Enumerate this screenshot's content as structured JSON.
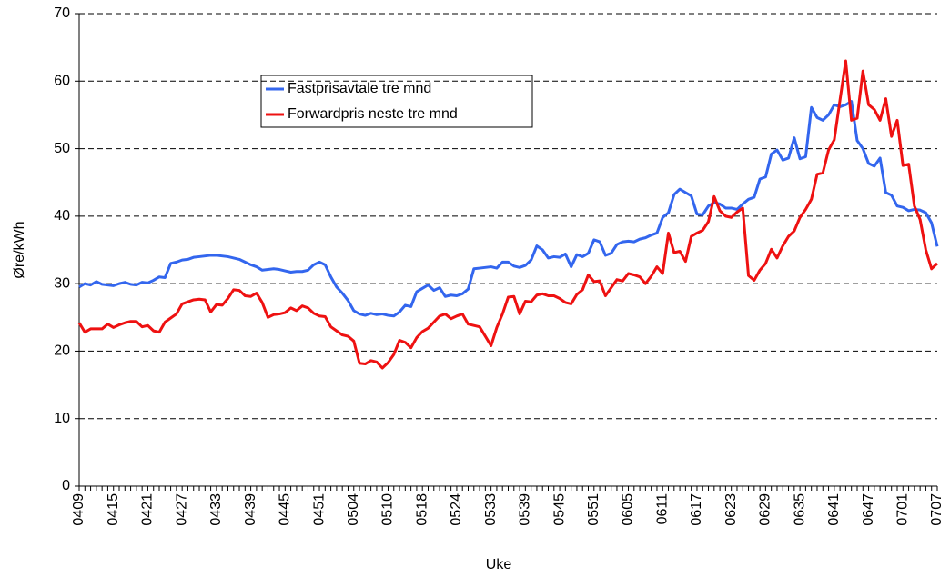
{
  "chart_data": {
    "type": "line",
    "xlabel": "Uke",
    "ylabel": "Øre/kWh",
    "categories": [
      "0409",
      null,
      null,
      null,
      null,
      null,
      "0415",
      null,
      null,
      null,
      null,
      null,
      "0421",
      null,
      null,
      null,
      null,
      null,
      "0427",
      null,
      null,
      null,
      null,
      null,
      "0433",
      null,
      null,
      null,
      null,
      null,
      "0439",
      null,
      null,
      null,
      null,
      null,
      "0445",
      null,
      null,
      null,
      null,
      null,
      "0451",
      null,
      null,
      null,
      null,
      null,
      "0504",
      null,
      null,
      null,
      null,
      null,
      "0510",
      null,
      null,
      null,
      null,
      null,
      "0518",
      null,
      null,
      null,
      null,
      null,
      "0524",
      null,
      null,
      null,
      null,
      null,
      "0533",
      null,
      null,
      null,
      null,
      null,
      "0539",
      null,
      null,
      null,
      null,
      null,
      "0545",
      null,
      null,
      null,
      null,
      null,
      "0551",
      null,
      null,
      null,
      null,
      null,
      "0605",
      null,
      null,
      null,
      null,
      null,
      "0611",
      null,
      null,
      null,
      null,
      null,
      "0617",
      null,
      null,
      null,
      null,
      null,
      "0623",
      null,
      null,
      null,
      null,
      null,
      "0629",
      null,
      null,
      null,
      null,
      null,
      "0635",
      null,
      null,
      null,
      null,
      null,
      "0641",
      null,
      null,
      null,
      null,
      null,
      "0647",
      null,
      null,
      null,
      null,
      null,
      "0701",
      null,
      null,
      null,
      null,
      null,
      "0707"
    ],
    "series": [
      {
        "name": "Fastprisavtale tre mnd",
        "color": "#3366ee",
        "values": [
          29.5,
          30,
          29.8,
          30.3,
          29.9,
          29.8,
          29.7,
          30,
          30.2,
          29.9,
          29.8,
          30.2,
          30.1,
          30.5,
          31,
          30.9,
          33,
          33.2,
          33.5,
          33.6,
          33.9,
          34,
          34.1,
          34.2,
          34.2,
          34.1,
          34,
          33.8,
          33.6,
          33.2,
          32.8,
          32.5,
          32,
          32.1,
          32.2,
          32.1,
          31.9,
          31.7,
          31.8,
          31.8,
          32,
          32.8,
          33.2,
          32.8,
          31,
          29.5,
          28.6,
          27.5,
          26,
          25.5,
          25.3,
          25.6,
          25.4,
          25.5,
          25.3,
          25.2,
          25.8,
          26.8,
          26.6,
          28.8,
          29.3,
          29.8,
          29,
          29.4,
          28.1,
          28.3,
          28.2,
          28.5,
          29.2,
          32.2,
          32.3,
          32.4,
          32.5,
          32.3,
          33.2,
          33.2,
          32.6,
          32.4,
          32.7,
          33.5,
          35.6,
          35,
          33.8,
          34,
          33.9,
          34.4,
          32.5,
          34.3,
          34,
          34.5,
          36.5,
          36.2,
          34.2,
          34.5,
          35.8,
          36.2,
          36.3,
          36.2,
          36.6,
          36.8,
          37.2,
          37.5,
          39.8,
          40.5,
          43.2,
          44,
          43.5,
          43,
          40.3,
          40.2,
          41.5,
          42,
          41.8,
          41.2,
          41.2,
          41,
          41.8,
          42.5,
          42.8,
          45.5,
          45.8,
          49.2,
          49.8,
          48.3,
          48.6,
          51.6,
          48.5,
          48.8,
          56.1,
          54.6,
          54.2,
          55,
          56.5,
          56.2,
          56.5,
          57,
          51.2,
          50,
          47.8,
          47.4,
          48.6,
          43.5,
          43.1,
          41.5,
          41.3,
          40.8,
          41,
          40.9,
          40.5,
          39,
          35.5
        ]
      },
      {
        "name": "Forwardpris neste tre mnd",
        "color": "#ee1111",
        "values": [
          24.2,
          22.8,
          23.3,
          23.3,
          23.3,
          24,
          23.5,
          23.9,
          24.2,
          24.4,
          24.4,
          23.6,
          23.8,
          23,
          22.8,
          24.3,
          24.9,
          25.5,
          27,
          27.3,
          27.6,
          27.7,
          27.6,
          25.8,
          26.9,
          26.8,
          27.8,
          29.1,
          29,
          28.2,
          28.1,
          28.6,
          27.2,
          25,
          25.4,
          25.5,
          25.7,
          26.4,
          26,
          26.7,
          26.4,
          25.6,
          25.2,
          25.1,
          23.6,
          23,
          22.4,
          22.2,
          21.5,
          18.2,
          18.1,
          18.6,
          18.4,
          17.5,
          18.3,
          19.5,
          21.6,
          21.3,
          20.5,
          22,
          22.9,
          23.4,
          24.3,
          25.2,
          25.5,
          24.8,
          25.2,
          25.5,
          24,
          23.8,
          23.6,
          22.2,
          20.8,
          23.5,
          25.5,
          28,
          28.1,
          25.5,
          27.4,
          27.3,
          28.3,
          28.5,
          28.2,
          28.2,
          27.8,
          27.2,
          27,
          28.4,
          29.1,
          31.3,
          30.3,
          30.4,
          28.2,
          29.4,
          30.6,
          30.4,
          31.5,
          31.3,
          31,
          30,
          31.1,
          32.5,
          31.5,
          37.5,
          34.6,
          34.8,
          33.3,
          37,
          37.5,
          37.9,
          39.2,
          42.9,
          40.8,
          40,
          39.8,
          40.6,
          41.2,
          31.2,
          30.5,
          32,
          33,
          35.1,
          33.8,
          35.6,
          37,
          37.8,
          39.8,
          41,
          42.5,
          46.2,
          46.4,
          49.8,
          51.3,
          57.2,
          63,
          54.2,
          54.5,
          61.5,
          56.5,
          55.8,
          54.2,
          57.4,
          51.8,
          54.2,
          47.5,
          47.7,
          41.5,
          39.5,
          35,
          32.2,
          33
        ]
      }
    ],
    "ylim": [
      0,
      70
    ],
    "yticks": [
      0,
      10,
      20,
      30,
      40,
      50,
      60,
      70
    ],
    "grid": true
  }
}
